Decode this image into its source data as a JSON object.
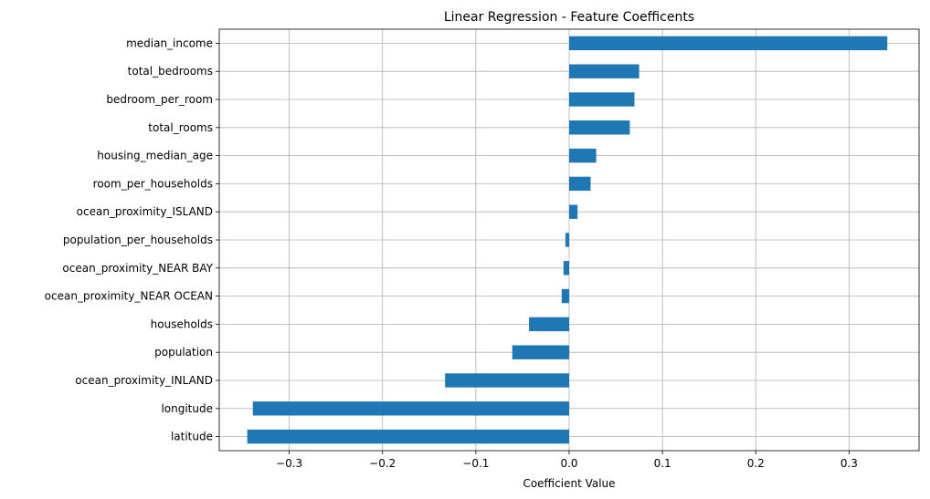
{
  "chart_data": {
    "type": "bar",
    "orientation": "horizontal",
    "title": "Linear Regression - Feature Coefficents",
    "xlabel": "Coefficient Value",
    "ylabel": "",
    "grid": true,
    "xlim": [
      -0.375,
      0.375
    ],
    "xticks": [
      -0.3,
      -0.2,
      -0.1,
      0.0,
      0.1,
      0.2,
      0.3
    ],
    "xtick_labels": [
      "−0.3",
      "−0.2",
      "−0.1",
      "0.0",
      "0.1",
      "0.2",
      "0.3"
    ],
    "bar_color": "#1f77b4",
    "categories": [
      "latitude",
      "longitude",
      "ocean_proximity_INLAND",
      "population",
      "households",
      "ocean_proximity_NEAR OCEAN",
      "ocean_proximity_NEAR BAY",
      "population_per_households",
      "ocean_proximity_ISLAND",
      "room_per_households",
      "housing_median_age",
      "total_rooms",
      "bedroom_per_room",
      "total_bedrooms",
      "median_income"
    ],
    "values": [
      -0.345,
      -0.339,
      -0.133,
      -0.061,
      -0.043,
      -0.008,
      -0.006,
      -0.004,
      0.009,
      0.023,
      0.029,
      0.065,
      0.07,
      0.075,
      0.341
    ]
  }
}
